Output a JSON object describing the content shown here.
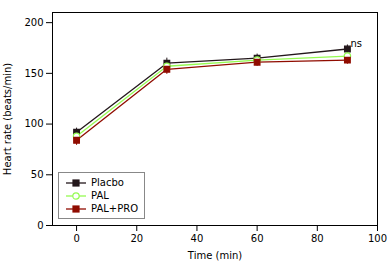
{
  "chart_data": {
    "type": "line",
    "x": [
      0,
      30,
      60,
      90
    ],
    "series": [
      {
        "name": "Placbo",
        "values": [
          92,
          160,
          165,
          174
        ],
        "errors": [
          4,
          5,
          4,
          4
        ],
        "marker": "square"
      },
      {
        "name": "PAL",
        "values": [
          88,
          157,
          163,
          167
        ],
        "errors": [
          5,
          5,
          4,
          4
        ],
        "marker": "open_circle"
      },
      {
        "name": "PAL+PRO",
        "values": [
          84,
          154,
          161,
          163
        ],
        "errors": [
          5,
          5,
          4,
          4
        ],
        "marker": "square"
      }
    ],
    "xlabel": "Time (min)",
    "ylabel": "Heart rate (beats/min)",
    "xlim": [
      -8,
      100
    ],
    "ylim": [
      0,
      210
    ],
    "xticks": [
      0,
      20,
      40,
      60,
      80,
      100
    ],
    "yticks": [
      0,
      50,
      100,
      150,
      200
    ],
    "annotations": [
      {
        "text": "ns",
        "x": 91,
        "y": 176
      }
    ],
    "legend": "lower left",
    "grid": false
  }
}
